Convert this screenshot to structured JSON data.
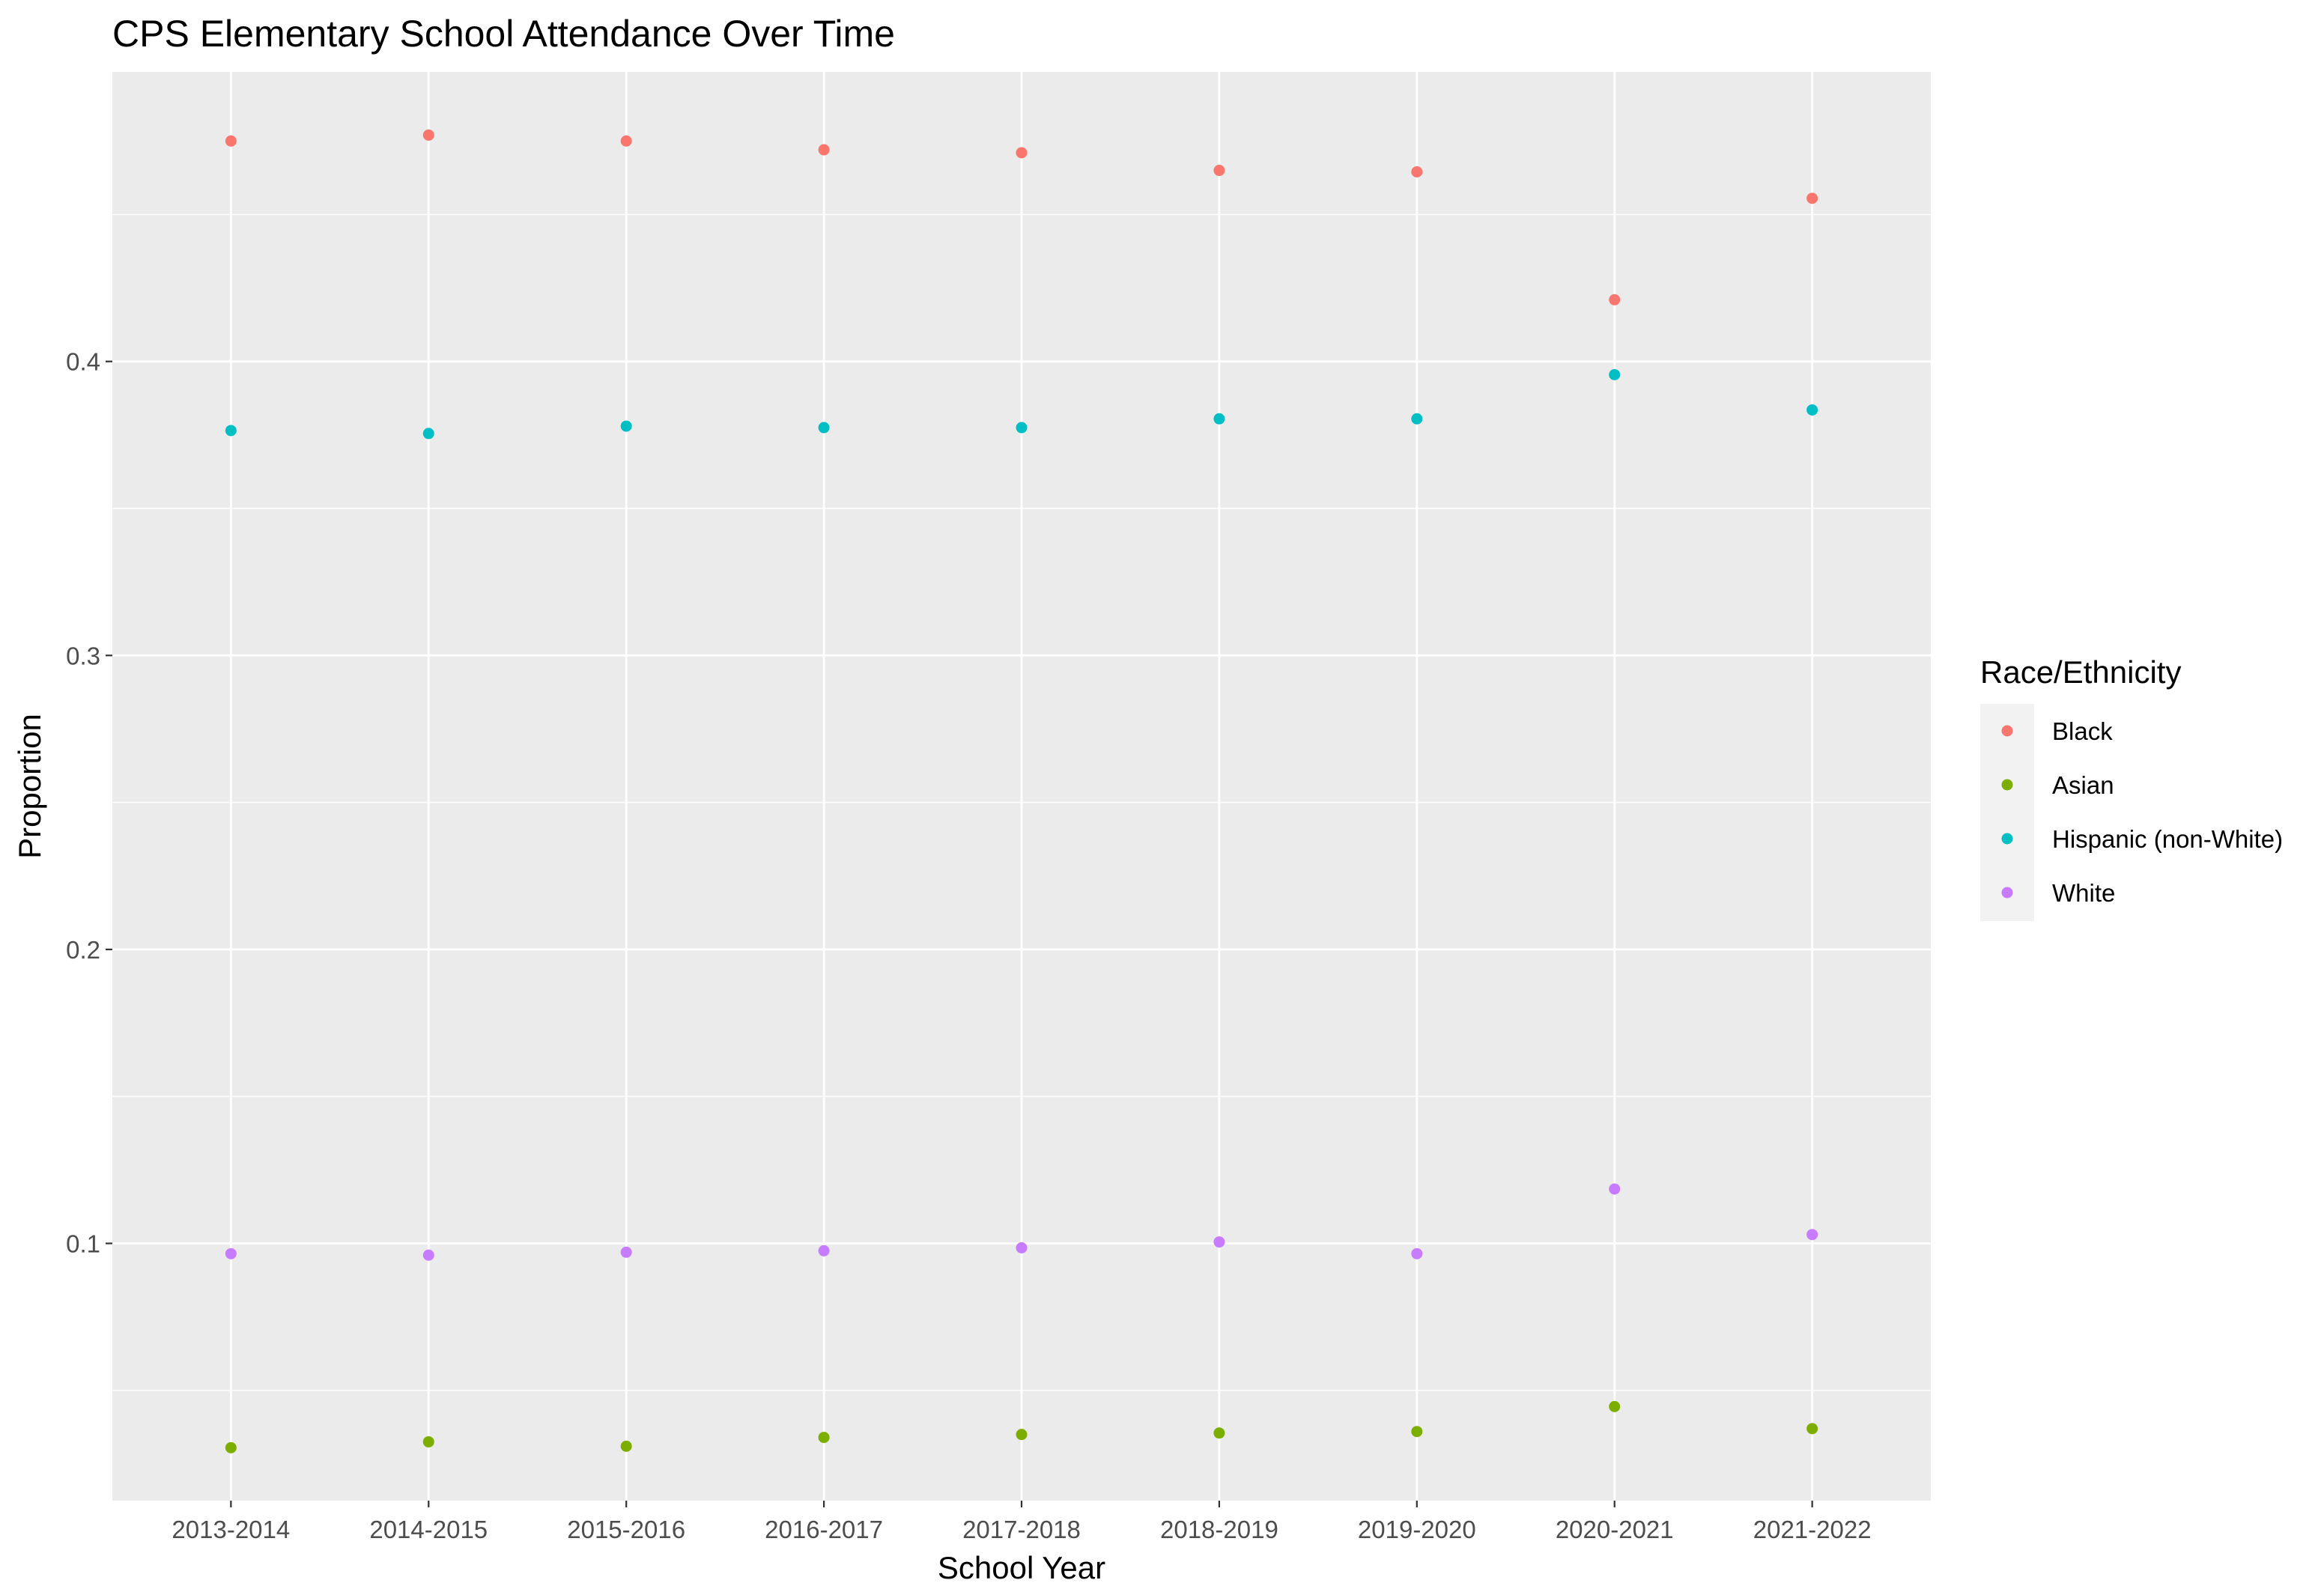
{
  "chart_data": {
    "type": "scatter",
    "title": "CPS Elementary School Attendance Over Time",
    "xlabel": "School Year",
    "ylabel": "Proportion",
    "categories": [
      "2013-2014",
      "2014-2015",
      "2015-2016",
      "2016-2017",
      "2017-2018",
      "2018-2019",
      "2019-2020",
      "2020-2021",
      "2021-2022"
    ],
    "ylim": [
      0.0125,
      0.4985
    ],
    "yticks": [
      0.1,
      0.2,
      0.3,
      0.4
    ],
    "ytick_labels": [
      "0.1",
      "0.2",
      "0.3",
      "0.4"
    ],
    "grid": true,
    "background": "#EBEBEB",
    "legend": {
      "title": "Race/Ethnicity",
      "placement": "right"
    },
    "series": [
      {
        "name": "Black",
        "color": "#F8766D",
        "values": [
          0.475,
          0.477,
          0.475,
          0.472,
          0.471,
          0.465,
          0.4645,
          0.421,
          0.4555
        ]
      },
      {
        "name": "Asian",
        "color": "#7CAE00",
        "values": [
          0.0305,
          0.0325,
          0.031,
          0.034,
          0.035,
          0.0355,
          0.036,
          0.0445,
          0.037
        ]
      },
      {
        "name": "Hispanic (non-White)",
        "color": "#00BFC4",
        "values": [
          0.3765,
          0.3755,
          0.378,
          0.3775,
          0.3775,
          0.3805,
          0.3805,
          0.3955,
          0.3835
        ]
      },
      {
        "name": "White",
        "color": "#C77CFF",
        "values": [
          0.0965,
          0.096,
          0.097,
          0.0975,
          0.0985,
          0.1005,
          0.0965,
          0.1185,
          0.103
        ]
      }
    ]
  }
}
